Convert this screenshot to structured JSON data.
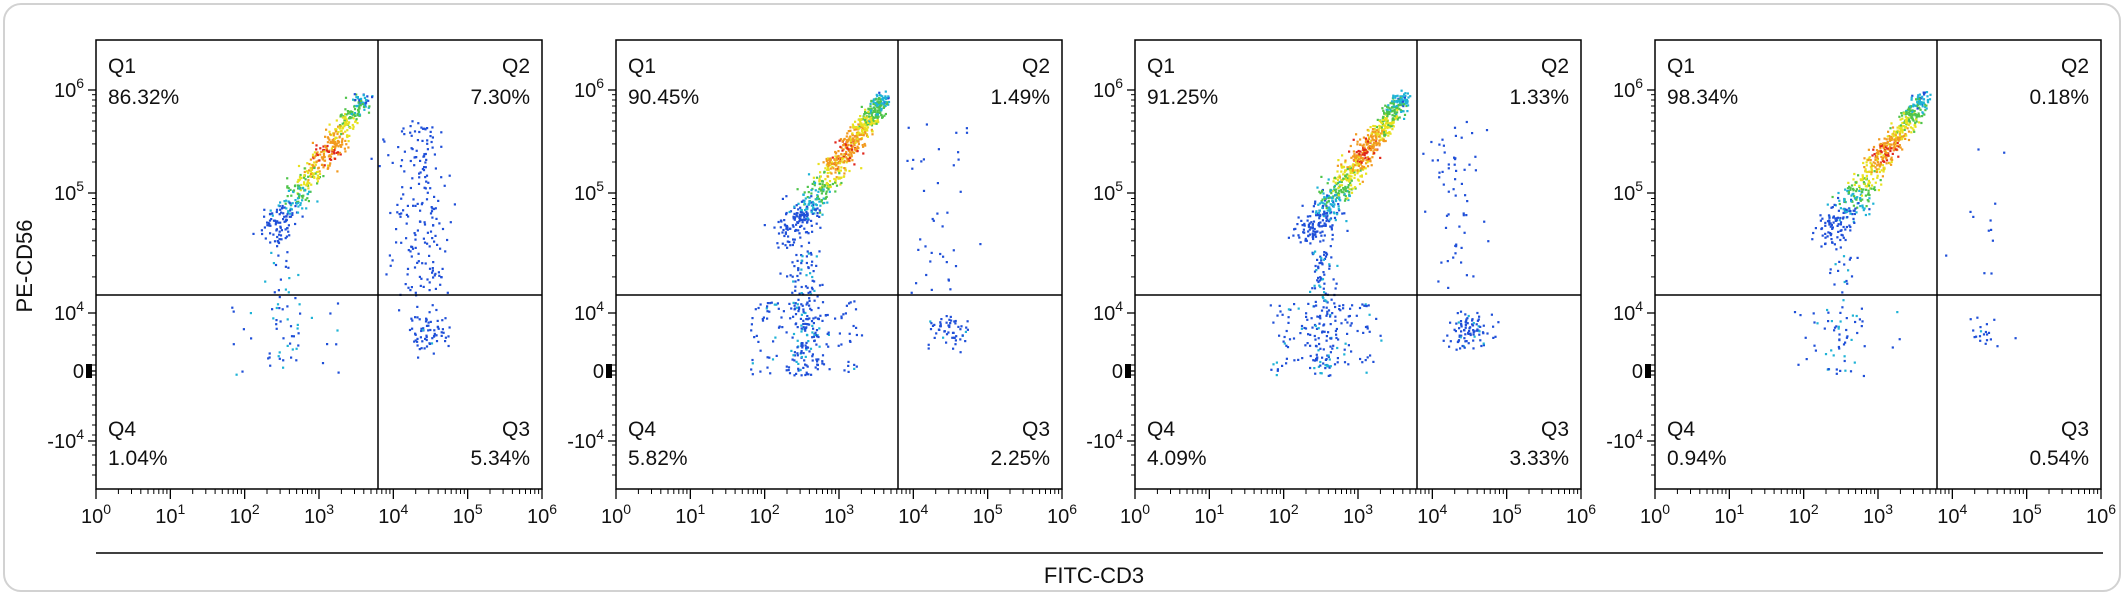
{
  "figure": {
    "shared_xlabel": "FITC-CD3",
    "ylabel": "PE-CD56"
  },
  "chart_data": [
    {
      "type": "scatter",
      "panel": 1,
      "xlabel": "FITC-CD3",
      "ylabel": "PE-CD56",
      "x_ticks": [
        "10^0",
        "10^1",
        "10^2",
        "10^3",
        "10^4",
        "10^5",
        "10^6"
      ],
      "y_ticks": [
        "-10^4",
        "0",
        "10^4",
        "10^5",
        "10^6"
      ],
      "quadrants": [
        {
          "name": "Q1",
          "percent": "86.32%"
        },
        {
          "name": "Q2",
          "percent": "7.30%"
        },
        {
          "name": "Q3",
          "percent": "5.34%"
        },
        {
          "name": "Q4",
          "percent": "1.04%"
        }
      ]
    },
    {
      "type": "scatter",
      "panel": 2,
      "xlabel": "FITC-CD3",
      "ylabel": "PE-CD56",
      "x_ticks": [
        "10^0",
        "10^1",
        "10^2",
        "10^3",
        "10^4",
        "10^5",
        "10^6"
      ],
      "y_ticks": [
        "-10^4",
        "0",
        "10^4",
        "10^5",
        "10^6"
      ],
      "quadrants": [
        {
          "name": "Q1",
          "percent": "90.45%"
        },
        {
          "name": "Q2",
          "percent": "1.49%"
        },
        {
          "name": "Q3",
          "percent": "2.25%"
        },
        {
          "name": "Q4",
          "percent": "5.82%"
        }
      ]
    },
    {
      "type": "scatter",
      "panel": 3,
      "xlabel": "FITC-CD3",
      "ylabel": "PE-CD56",
      "x_ticks": [
        "10^0",
        "10^1",
        "10^2",
        "10^3",
        "10^4",
        "10^5",
        "10^6"
      ],
      "y_ticks": [
        "-10^4",
        "0",
        "10^4",
        "10^5",
        "10^6"
      ],
      "quadrants": [
        {
          "name": "Q1",
          "percent": "91.25%"
        },
        {
          "name": "Q2",
          "percent": "1.33%"
        },
        {
          "name": "Q3",
          "percent": "3.33%"
        },
        {
          "name": "Q4",
          "percent": "4.09%"
        }
      ]
    },
    {
      "type": "scatter",
      "panel": 4,
      "xlabel": "FITC-CD3",
      "ylabel": "PE-CD56",
      "x_ticks": [
        "10^0",
        "10^1",
        "10^2",
        "10^3",
        "10^4",
        "10^5",
        "10^6"
      ],
      "y_ticks": [
        "-10^4",
        "0",
        "10^4",
        "10^5",
        "10^6"
      ],
      "quadrants": [
        {
          "name": "Q1",
          "percent": "98.34%"
        },
        {
          "name": "Q2",
          "percent": "0.18%"
        },
        {
          "name": "Q3",
          "percent": "0.54%"
        },
        {
          "name": "Q4",
          "percent": "0.94%"
        }
      ]
    }
  ]
}
